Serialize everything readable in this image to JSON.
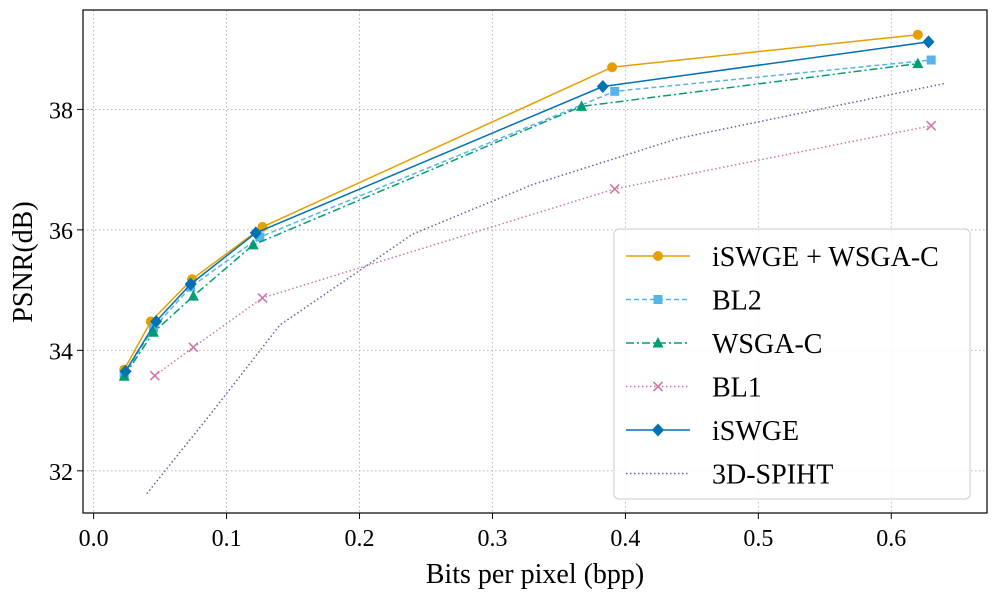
{
  "chart_data": {
    "type": "line",
    "title": "",
    "xlabel": "Bits per pixel (bpp)",
    "ylabel": "PSNR(dB)",
    "xlim": [
      -0.008,
      0.672
    ],
    "ylim": [
      31.3,
      39.65
    ],
    "xticks": [
      0.0,
      0.1,
      0.2,
      0.3,
      0.4,
      0.5,
      0.6
    ],
    "xtick_labels": [
      "0.0",
      "0.1",
      "0.2",
      "0.3",
      "0.4",
      "0.5",
      "0.6"
    ],
    "yticks": [
      32,
      34,
      36,
      38
    ],
    "ytick_labels": [
      "32",
      "34",
      "36",
      "38"
    ],
    "grid": true,
    "legend_position": "lower-right",
    "series": [
      {
        "name": "iSWGE + WSGA-C",
        "color": "#e69f00",
        "marker": "circle",
        "dash": "solid",
        "x": [
          0.023,
          0.043,
          0.074,
          0.127,
          0.39,
          0.62
        ],
        "y": [
          33.68,
          34.48,
          35.18,
          36.05,
          38.7,
          39.24
        ]
      },
      {
        "name": "BL2",
        "color": "#56b4e9",
        "marker": "square",
        "dash": "dashed",
        "x": [
          0.023,
          0.045,
          0.073,
          0.125,
          0.392,
          0.63
        ],
        "y": [
          33.6,
          34.37,
          35.05,
          35.88,
          38.3,
          38.82
        ]
      },
      {
        "name": "WSGA-C",
        "color": "#009e73",
        "marker": "triangle",
        "dash": "dashdot",
        "x": [
          0.023,
          0.045,
          0.075,
          0.12,
          0.367,
          0.62
        ],
        "y": [
          33.57,
          34.3,
          34.9,
          35.75,
          38.05,
          38.76
        ]
      },
      {
        "name": "BL1",
        "color": "#cc79a7",
        "marker": "x",
        "dash": "dotted",
        "x": [
          0.046,
          0.075,
          0.127,
          0.392,
          0.63
        ],
        "y": [
          33.58,
          34.05,
          34.87,
          36.68,
          37.73
        ]
      },
      {
        "name": "iSWGE",
        "color": "#0072b2",
        "marker": "diamond",
        "dash": "solid",
        "x": [
          0.024,
          0.047,
          0.073,
          0.122,
          0.383,
          0.628
        ],
        "y": [
          33.65,
          34.48,
          35.1,
          35.95,
          38.38,
          39.12
        ]
      },
      {
        "name": "3D-SPIHT",
        "color": "#6a5fa0",
        "marker": "none",
        "dash": "dotted",
        "x": [
          0.04,
          0.09,
          0.14,
          0.24,
          0.33,
          0.44,
          0.55,
          0.64
        ],
        "y": [
          31.62,
          33.0,
          34.42,
          35.93,
          36.75,
          37.52,
          38.02,
          38.43
        ]
      }
    ]
  }
}
